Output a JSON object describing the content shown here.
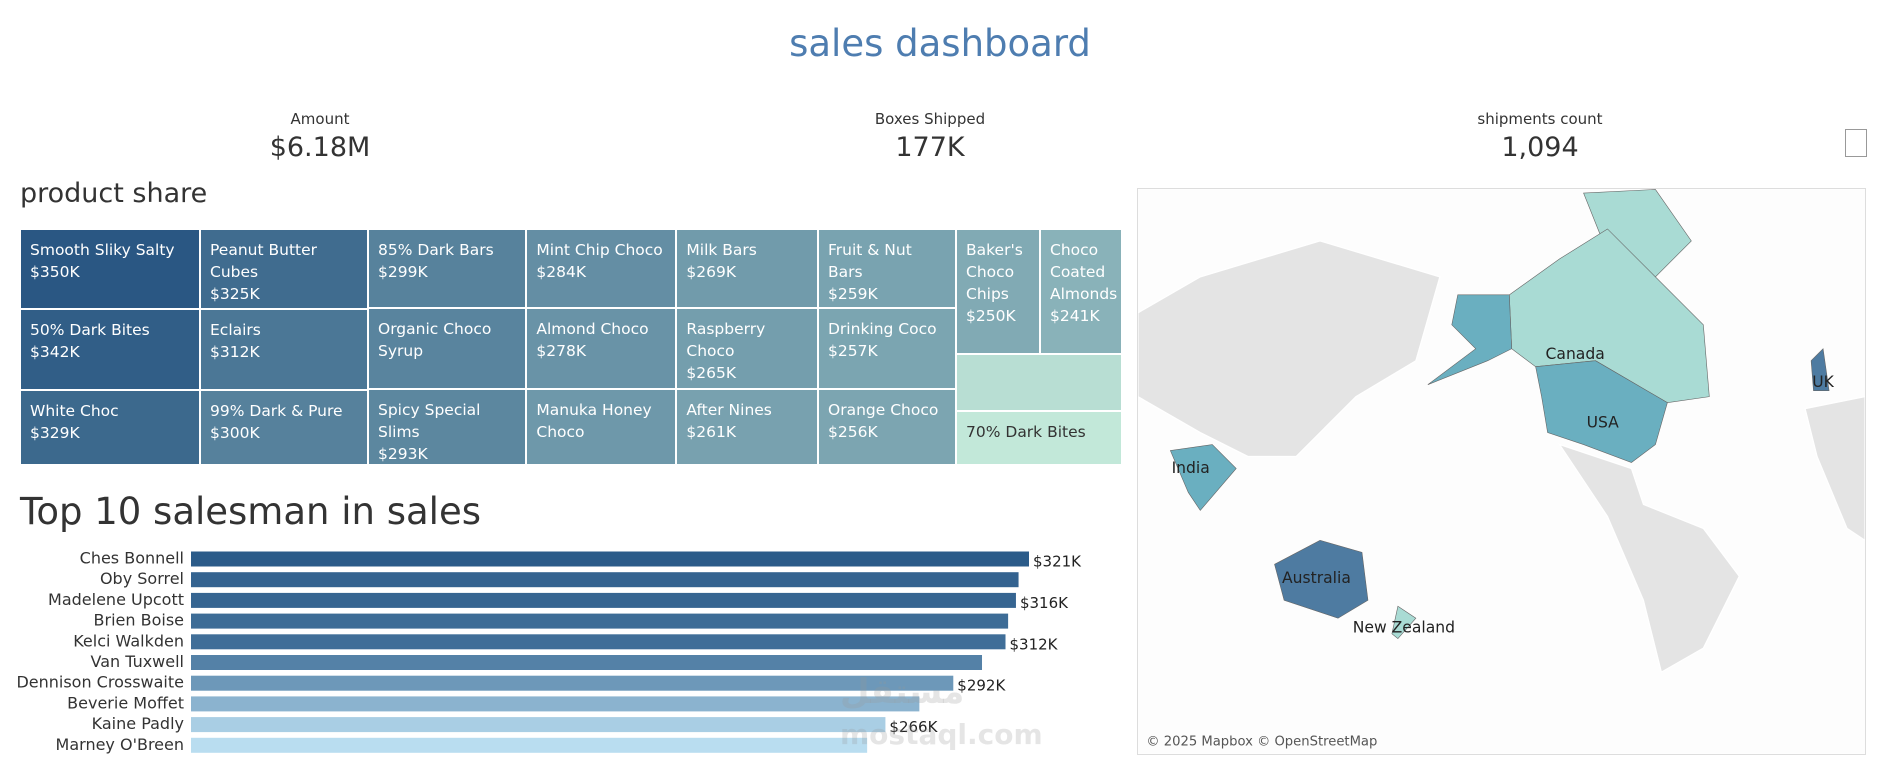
{
  "title": "sales dashboard",
  "kpis": [
    {
      "label": "Amount",
      "value": "$6.18M"
    },
    {
      "label": "Boxes Shipped",
      "value": "177K"
    },
    {
      "label": "shipments count",
      "value": "1,094"
    }
  ],
  "chart_data": [
    {
      "type": "treemap",
      "title": "product share",
      "categories": [
        "Smooth Sliky Salty",
        "50% Dark Bites",
        "White Choc",
        "Peanut Butter Cubes",
        "Eclairs",
        "99% Dark & Pure",
        "85% Dark Bars",
        "Organic Choco Syrup",
        "Spicy Special Slims",
        "Mint Chip Choco",
        "Almond Choco",
        "Manuka Honey Choco",
        "Milk Bars",
        "Raspberry Choco",
        "After Nines",
        "Fruit & Nut Bars",
        "Drinking Coco",
        "Orange Choco",
        "Baker's Choco Chips",
        "Choco Coated Almonds",
        null,
        "70% Dark Bites"
      ],
      "values": [
        350000,
        342000,
        329000,
        325000,
        312000,
        300000,
        299000,
        296000,
        293000,
        284000,
        278000,
        272000,
        269000,
        265000,
        261000,
        259000,
        257000,
        256000,
        250000,
        241000,
        188000,
        176000
      ],
      "value_labels": [
        "$350K",
        "$342K",
        "$329K",
        "$325K",
        "$312K",
        "$300K",
        "$299K",
        null,
        "$293K",
        "$284K",
        "$278K",
        null,
        "$269K",
        "$265K",
        "$261K",
        "$259K",
        "$257K",
        "$256K",
        "$250K",
        "$241K",
        null,
        null
      ],
      "color_range": [
        "#c2e8d9",
        "#2a5783"
      ]
    },
    {
      "type": "bar",
      "title": "Top 10 salesman in sales",
      "categories": [
        "Ches Bonnell",
        "Oby Sorrel",
        "Madelene Upcott",
        "Brien Boise",
        "Kelci Walkden",
        "Van Tuxwell",
        "Dennison Crosswaite",
        "Beverie Moffet",
        "Kaine Padly",
        "Marney O'Breen"
      ],
      "values": [
        321000,
        317000,
        316000,
        313000,
        312000,
        303000,
        292000,
        279000,
        266000,
        259000
      ],
      "value_labels": [
        "$321K",
        null,
        "$316K",
        null,
        "$312K",
        null,
        "$292K",
        null,
        "$266K",
        null
      ],
      "color_range": [
        "#b9ddf0",
        "#2b5b89"
      ]
    }
  ],
  "map": {
    "labels": [
      "Canada",
      "USA",
      "UK",
      "India",
      "Australia",
      "New Zealand"
    ],
    "attribution": "© 2025 Mapbox © OpenStreetMap"
  },
  "watermark": [
    "مستقل",
    "mostaql.com"
  ]
}
